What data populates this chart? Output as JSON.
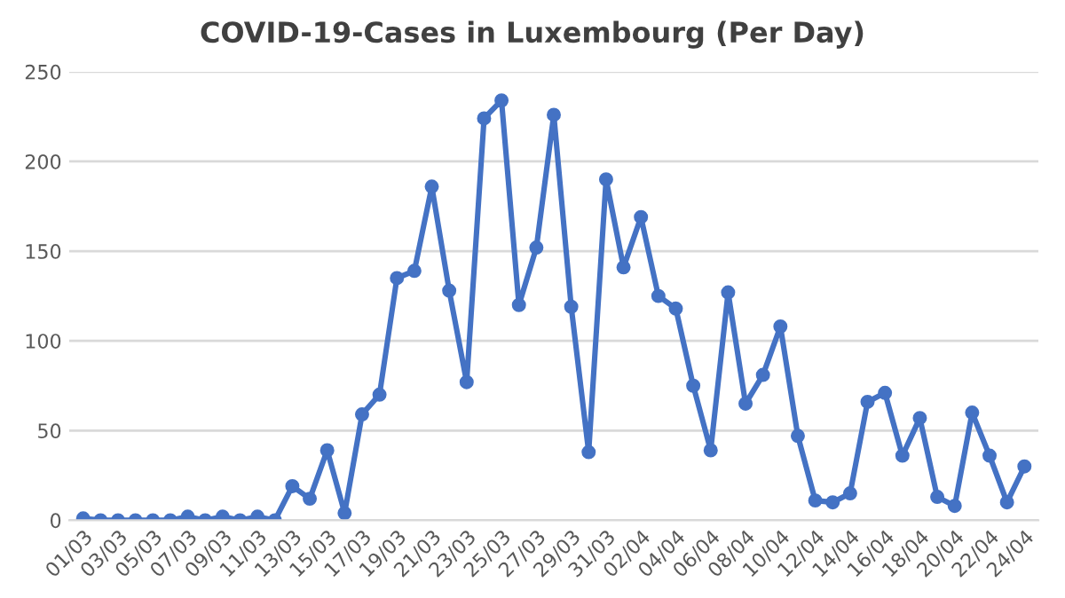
{
  "chart_data": {
    "type": "line",
    "title": "COVID-19-Cases in Luxembourg (Per Day)",
    "categories": [
      "01/03",
      null,
      "03/03",
      null,
      "05/03",
      null,
      "07/03",
      null,
      "09/03",
      null,
      "11/03",
      null,
      "13/03",
      null,
      "15/03",
      null,
      "17/03",
      null,
      "19/03",
      null,
      "21/03",
      null,
      "23/03",
      null,
      "25/03",
      null,
      "27/03",
      null,
      "29/03",
      null,
      "31/03",
      null,
      "02/04",
      null,
      "04/04",
      null,
      "06/04",
      null,
      "08/04",
      null,
      "10/04",
      null,
      "12/04",
      null,
      "14/04",
      null,
      "16/04",
      null,
      "18/04",
      null,
      "20/04",
      null,
      "22/04",
      null,
      "24/04"
    ],
    "series": [
      {
        "color": "#4472c4",
        "values": [
          1,
          0,
          0,
          0,
          0,
          0,
          2,
          0,
          2,
          0,
          2,
          0,
          19,
          12,
          39,
          4,
          59,
          70,
          135,
          139,
          186,
          128,
          77,
          224,
          234,
          120,
          152,
          226,
          119,
          38,
          190,
          141,
          169,
          125,
          118,
          75,
          39,
          127,
          65,
          81,
          108,
          47,
          11,
          10,
          15,
          66,
          71,
          36,
          57,
          13,
          8,
          60,
          36,
          10,
          30
        ]
      }
    ],
    "ylim": [
      0,
      250
    ],
    "yticks": [
      0,
      50,
      100,
      150,
      200,
      250
    ],
    "grid": "y",
    "marker": "circle",
    "line_style": "solid"
  }
}
